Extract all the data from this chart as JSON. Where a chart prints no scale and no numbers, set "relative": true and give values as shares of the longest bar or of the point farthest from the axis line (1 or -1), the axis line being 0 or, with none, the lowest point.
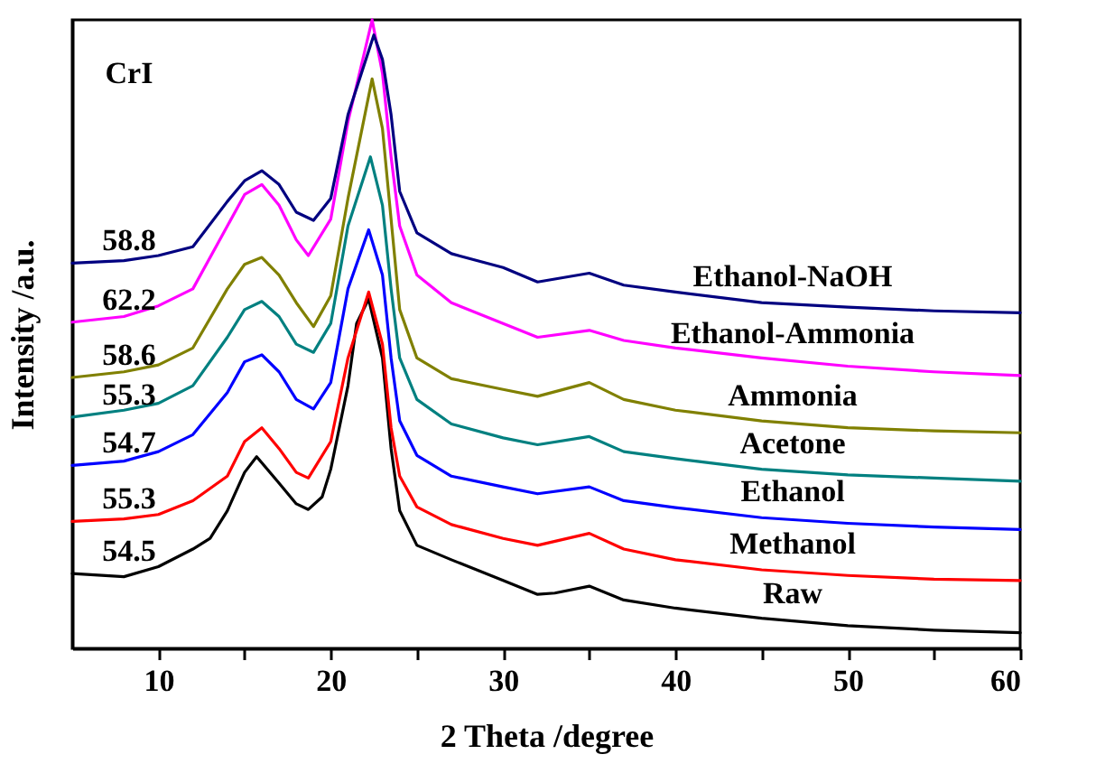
{
  "chart_data": {
    "type": "line",
    "relative": true,
    "xlabel": "2 Theta /degree",
    "ylabel": "Intensity /a.u.",
    "xlim": [
      5,
      60
    ],
    "xticks": [
      10,
      {
        "value": 15,
        "label": null
      },
      20,
      {
        "value": 25,
        "label": null
      },
      30,
      {
        "value": 35,
        "label": null
      },
      40,
      {
        "value": 45,
        "label": null
      },
      50,
      {
        "value": 55,
        "label": null
      },
      60
    ],
    "annotations": [
      "CrI",
      "58.8",
      "62.2",
      "58.6",
      "55.3",
      "54.7",
      "55.3",
      "54.5"
    ],
    "series": [
      {
        "name": "Raw",
        "color": "#000000",
        "x": [
          5,
          8,
          10,
          12,
          13,
          14,
          15,
          15.7,
          17,
          18,
          18.7,
          19.5,
          20,
          21,
          21.5,
          22.2,
          23,
          23.5,
          24,
          25,
          27,
          30,
          32,
          33,
          35,
          37,
          40,
          45,
          50,
          55,
          60
        ],
        "values": [
          0.119,
          0.114,
          0.13,
          0.158,
          0.175,
          0.219,
          0.28,
          0.305,
          0.263,
          0.23,
          0.221,
          0.241,
          0.285,
          0.418,
          0.517,
          0.556,
          0.462,
          0.318,
          0.219,
          0.164,
          0.141,
          0.108,
          0.086,
          0.088,
          0.099,
          0.077,
          0.064,
          0.048,
          0.036,
          0.029,
          0.025
        ]
      },
      {
        "name": "Methanol",
        "color": "#ff0000",
        "x": [
          5,
          8,
          10,
          12,
          14,
          15,
          16,
          17,
          18,
          18.7,
          20,
          21,
          22.2,
          23,
          23.5,
          24,
          25,
          27,
          30,
          32,
          35,
          37,
          40,
          45,
          50,
          55,
          60
        ],
        "values": [
          0.202,
          0.206,
          0.213,
          0.235,
          0.274,
          0.329,
          0.351,
          0.318,
          0.28,
          0.271,
          0.329,
          0.462,
          0.567,
          0.484,
          0.351,
          0.274,
          0.225,
          0.197,
          0.175,
          0.164,
          0.183,
          0.158,
          0.141,
          0.125,
          0.116,
          0.11,
          0.108
        ]
      },
      {
        "name": "Ethanol",
        "color": "#0000ff",
        "x": [
          5,
          8,
          10,
          12,
          14,
          15,
          16,
          17,
          18,
          19,
          20,
          21,
          22.2,
          23,
          23.5,
          24,
          25,
          27,
          30,
          32,
          35,
          37,
          40,
          45,
          50,
          55,
          60
        ],
        "values": [
          0.291,
          0.298,
          0.313,
          0.34,
          0.407,
          0.456,
          0.467,
          0.44,
          0.396,
          0.381,
          0.423,
          0.572,
          0.666,
          0.594,
          0.462,
          0.362,
          0.307,
          0.274,
          0.257,
          0.246,
          0.257,
          0.235,
          0.224,
          0.208,
          0.199,
          0.193,
          0.189
        ]
      },
      {
        "name": "Acetone",
        "color": "#008080",
        "x": [
          5,
          8,
          10,
          12,
          14,
          15,
          16,
          17,
          18,
          19,
          20,
          21,
          22.3,
          23,
          23.5,
          24,
          25,
          27,
          30,
          32,
          35,
          37,
          40,
          45,
          50,
          55,
          60
        ],
        "values": [
          0.368,
          0.379,
          0.39,
          0.418,
          0.495,
          0.539,
          0.552,
          0.528,
          0.484,
          0.471,
          0.517,
          0.672,
          0.782,
          0.705,
          0.572,
          0.462,
          0.396,
          0.357,
          0.335,
          0.324,
          0.337,
          0.313,
          0.302,
          0.285,
          0.276,
          0.271,
          0.266
        ]
      },
      {
        "name": "Ammonia",
        "color": "#808000",
        "x": [
          5,
          8,
          10,
          12,
          14,
          15,
          16,
          17,
          18,
          19,
          20,
          21,
          22.4,
          23,
          23.5,
          24,
          25,
          27,
          30,
          32,
          35,
          37,
          40,
          45,
          50,
          55,
          60
        ],
        "values": [
          0.431,
          0.44,
          0.451,
          0.478,
          0.572,
          0.611,
          0.622,
          0.594,
          0.55,
          0.512,
          0.561,
          0.716,
          0.906,
          0.827,
          0.683,
          0.539,
          0.462,
          0.429,
          0.412,
          0.401,
          0.423,
          0.396,
          0.379,
          0.362,
          0.351,
          0.346,
          0.343
        ]
      },
      {
        "name": "Ethanol-Ammonia",
        "color": "#ff00ff",
        "x": [
          5,
          8,
          10,
          12,
          14,
          15,
          16,
          17,
          18,
          18.7,
          20,
          21,
          22.4,
          23,
          23.5,
          24,
          25,
          27,
          30,
          32,
          35,
          37,
          40,
          45,
          50,
          55,
          60
        ],
        "values": [
          0.519,
          0.528,
          0.545,
          0.572,
          0.672,
          0.722,
          0.738,
          0.705,
          0.65,
          0.625,
          0.683,
          0.838,
          1,
          0.915,
          0.782,
          0.672,
          0.594,
          0.55,
          0.517,
          0.495,
          0.506,
          0.49,
          0.478,
          0.462,
          0.449,
          0.44,
          0.434
        ]
      },
      {
        "name": "Ethanol-NaOH",
        "color": "#000080",
        "x": [
          5,
          8,
          10,
          12,
          14,
          15,
          16,
          17,
          18,
          19,
          20,
          21,
          22.5,
          23,
          23.5,
          24,
          25,
          27,
          30,
          32,
          35,
          37,
          40,
          45,
          50,
          55,
          60
        ],
        "values": [
          0.613,
          0.617,
          0.625,
          0.639,
          0.711,
          0.744,
          0.76,
          0.738,
          0.694,
          0.681,
          0.716,
          0.849,
          0.976,
          0.937,
          0.849,
          0.727,
          0.661,
          0.628,
          0.606,
          0.583,
          0.597,
          0.578,
          0.567,
          0.55,
          0.543,
          0.537,
          0.534
        ]
      }
    ]
  }
}
